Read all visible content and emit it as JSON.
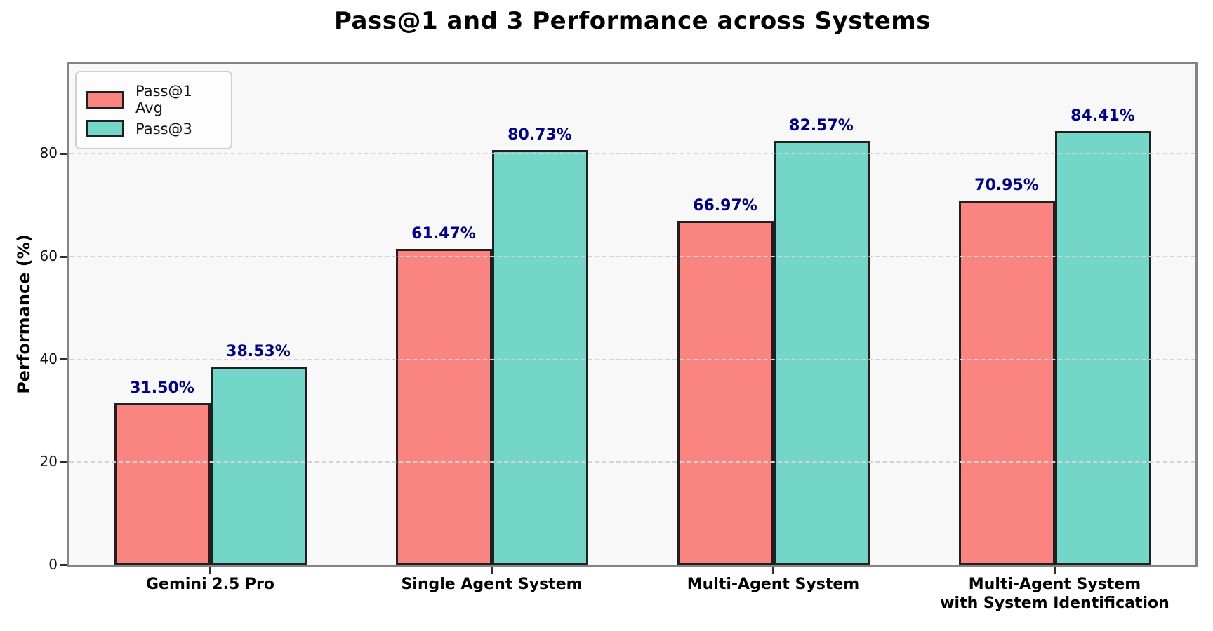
{
  "title": "Pass@1 and 3 Performance across Systems",
  "chart_data": {
    "type": "bar",
    "title": "Pass@1 and 3 Performance across Systems",
    "xlabel": "",
    "ylabel": "Performance (%)",
    "ylim": [
      0,
      97.5
    ],
    "yticks": [
      0,
      20,
      40,
      60,
      80
    ],
    "grid": "horizontal dashed gridlines at y ticks",
    "legend_position": "upper left",
    "categories": [
      "Gemini 2.5 Pro",
      "Single Agent System",
      "Multi-Agent System",
      "Multi-Agent System\nwith System Identification"
    ],
    "series": [
      {
        "name": "Pass@1 Avg",
        "color": "#FA8580",
        "values": [
          31.5,
          61.47,
          66.97,
          70.95
        ],
        "labels": [
          "31.50%",
          "61.47%",
          "66.97%",
          "70.95%"
        ]
      },
      {
        "name": "Pass@3",
        "color": "#74D6C9",
        "values": [
          38.53,
          80.73,
          82.57,
          84.41
        ],
        "labels": [
          "38.53%",
          "80.73%",
          "82.57%",
          "84.41%"
        ]
      }
    ],
    "colors": {
      "bar_edge": "#202020",
      "value_label": "#00008B",
      "plot_background": "#f8f8f8",
      "figure_background": "#ffffff",
      "spine": "#848484",
      "gridline": "#d4d4d4"
    }
  },
  "legend": {
    "items": [
      {
        "label": "Pass@1 Avg",
        "color": "#FA8580"
      },
      {
        "label": "Pass@3",
        "color": "#74D6C9"
      }
    ]
  }
}
